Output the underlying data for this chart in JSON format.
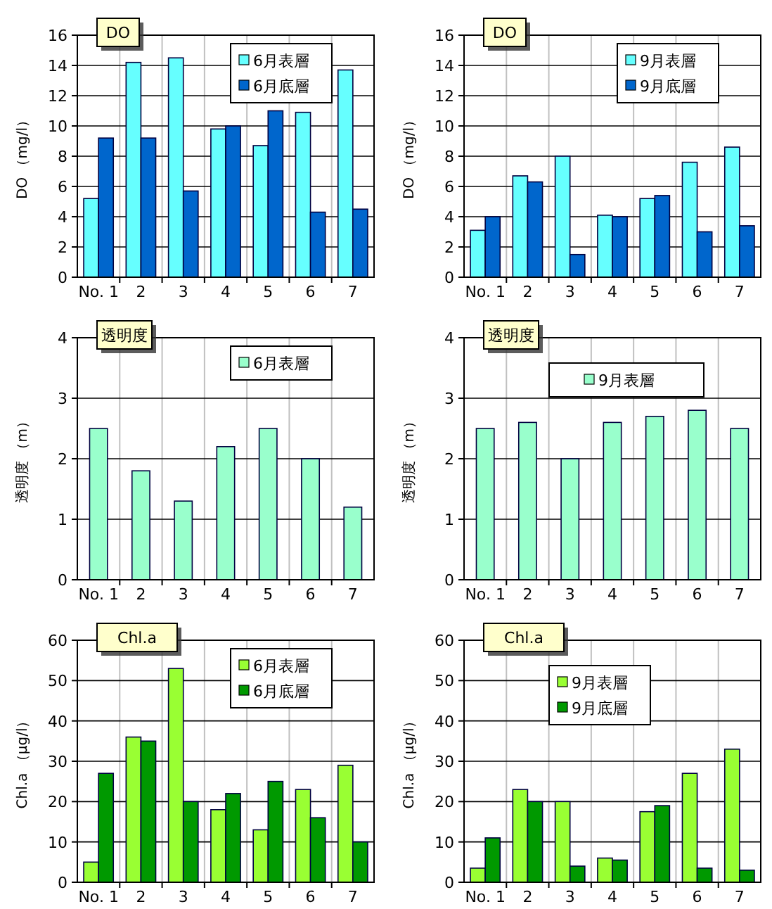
{
  "chart_data": [
    {
      "type": "bar",
      "title": "DO",
      "ylabel": "DO （mg/l）",
      "categories": [
        "No. 1",
        "2",
        "3",
        "4",
        "5",
        "6",
        "7"
      ],
      "series": [
        {
          "name": "6月表層",
          "color": "#66ffff",
          "values": [
            5.2,
            14.2,
            14.5,
            9.8,
            8.7,
            10.9,
            13.7
          ]
        },
        {
          "name": "6月底層",
          "color": "#0066cc",
          "values": [
            9.2,
            9.2,
            5.7,
            10,
            11,
            4.3,
            4.5
          ]
        }
      ],
      "ylim": [
        0,
        16
      ],
      "yticks": [
        0,
        2,
        4,
        6,
        8,
        10,
        12,
        14,
        16
      ],
      "grid": true,
      "legend": "top right"
    },
    {
      "type": "bar",
      "title": "DO",
      "ylabel": "DO （mg/l）",
      "categories": [
        "No. 1",
        "2",
        "3",
        "4",
        "5",
        "6",
        "7"
      ],
      "series": [
        {
          "name": "9月表層",
          "color": "#66ffff",
          "values": [
            3.1,
            6.7,
            8,
            4.1,
            5.2,
            7.6,
            8.6
          ]
        },
        {
          "name": "9月底層",
          "color": "#0066cc",
          "values": [
            4,
            6.3,
            1.5,
            4,
            5.4,
            3,
            3.4
          ]
        }
      ],
      "ylim": [
        0,
        16
      ],
      "yticks": [
        0,
        2,
        4,
        6,
        8,
        10,
        12,
        14,
        16
      ],
      "grid": true,
      "legend": "top right"
    },
    {
      "type": "bar",
      "title": "透明度",
      "ylabel": "透明度 （m）",
      "categories": [
        "No. 1",
        "2",
        "3",
        "4",
        "5",
        "6",
        "7"
      ],
      "series": [
        {
          "name": "6月表層",
          "color": "#99ffcc",
          "values": [
            2.5,
            1.8,
            1.3,
            2.2,
            2.5,
            2.0,
            1.2
          ]
        }
      ],
      "ylim": [
        0,
        4
      ],
      "yticks": [
        0,
        1,
        2,
        3,
        4
      ],
      "grid": true,
      "legend": "top right"
    },
    {
      "type": "bar",
      "title": "透明度",
      "ylabel": "透明度 （m）",
      "categories": [
        "No. 1",
        "2",
        "3",
        "4",
        "5",
        "6",
        "7"
      ],
      "series": [
        {
          "name": "9月表層",
          "color": "#99ffcc",
          "values": [
            2.5,
            2.6,
            2.0,
            2.6,
            2.7,
            2.8,
            2.5
          ]
        }
      ],
      "ylim": [
        0,
        4
      ],
      "yticks": [
        0,
        1,
        2,
        3,
        4
      ],
      "grid": true,
      "legend": "top"
    },
    {
      "type": "bar",
      "title": "Chl.a",
      "ylabel": "Chl.a （μg/l）",
      "categories": [
        "No. 1",
        "2",
        "3",
        "4",
        "5",
        "6",
        "7"
      ],
      "series": [
        {
          "name": "6月表層",
          "color": "#99ff33",
          "values": [
            5,
            36,
            53,
            18,
            13,
            23,
            29
          ]
        },
        {
          "name": "6月底層",
          "color": "#009900",
          "values": [
            27,
            35,
            20,
            22,
            25,
            16,
            10
          ]
        }
      ],
      "ylim": [
        0,
        60
      ],
      "yticks": [
        0,
        10,
        20,
        30,
        40,
        50,
        60
      ],
      "grid": true,
      "legend": "top right"
    },
    {
      "type": "bar",
      "title": "Chl.a",
      "ylabel": "Chl.a （μg/l）",
      "categories": [
        "No. 1",
        "2",
        "3",
        "4",
        "5",
        "6",
        "7"
      ],
      "series": [
        {
          "name": "9月表層",
          "color": "#99ff33",
          "values": [
            3.5,
            23,
            20,
            6,
            17.5,
            27,
            33
          ]
        },
        {
          "name": "9月底層",
          "color": "#009900",
          "values": [
            11,
            20,
            4,
            5.5,
            19,
            3.5,
            3
          ]
        }
      ],
      "ylim": [
        0,
        60
      ],
      "yticks": [
        0,
        10,
        20,
        30,
        40,
        50,
        60
      ],
      "grid": true,
      "legend": "top"
    }
  ]
}
